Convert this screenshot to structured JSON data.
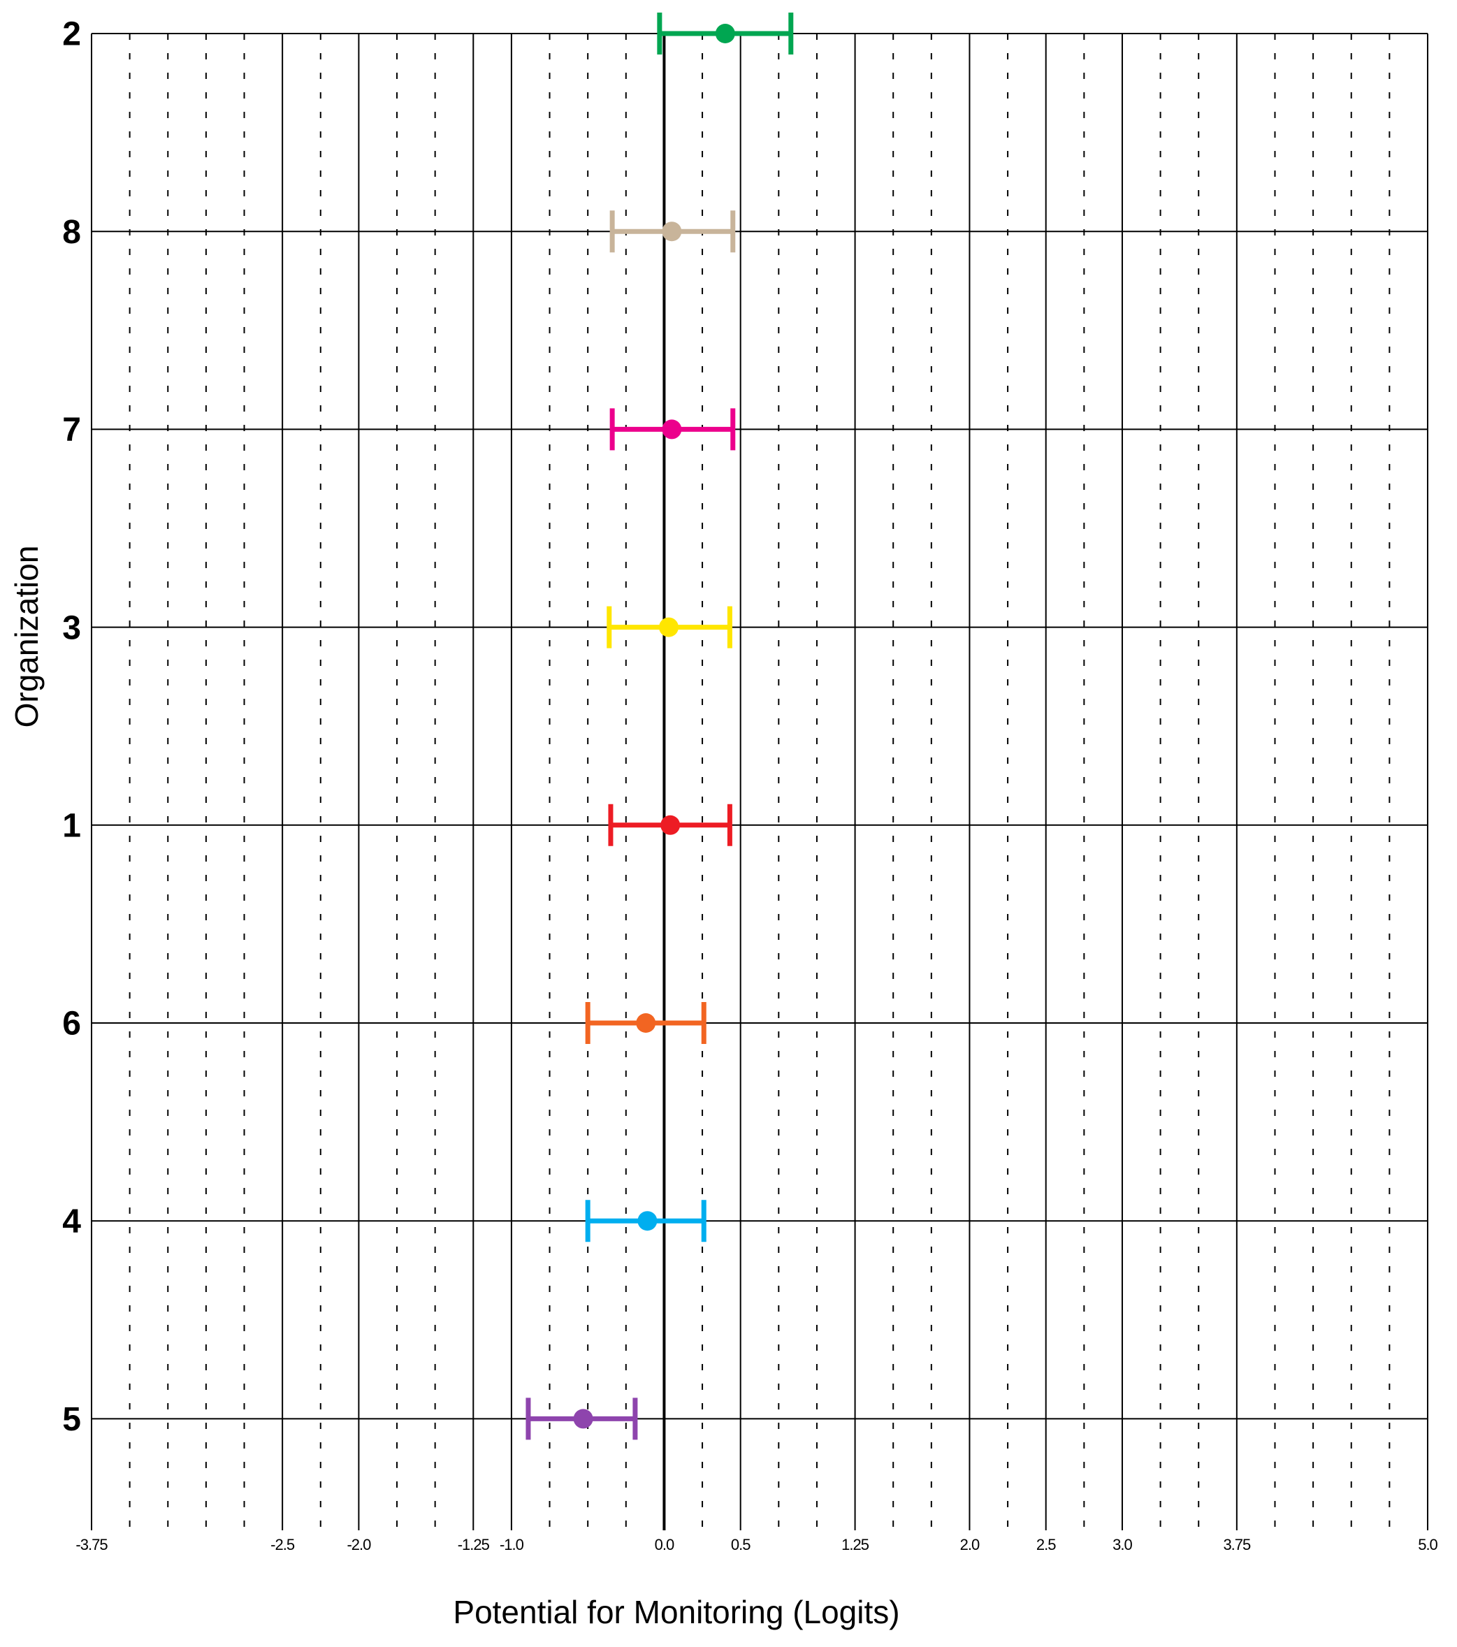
{
  "chart_data": {
    "type": "errorbar",
    "orientation": "horizontal",
    "xlabel": "Potential for Monitoring (Logits)",
    "ylabel": "Organization",
    "categories": [
      "2",
      "8",
      "7",
      "3",
      "1",
      "6",
      "4",
      "5"
    ],
    "values": [
      0.4,
      0.05,
      0.05,
      0.03,
      0.04,
      -0.12,
      -0.11,
      -0.53
    ],
    "lower": [
      -0.03,
      -0.34,
      -0.34,
      -0.36,
      -0.35,
      -0.5,
      -0.5,
      -0.89
    ],
    "upper": [
      0.83,
      0.45,
      0.45,
      0.43,
      0.43,
      0.26,
      0.26,
      -0.19
    ],
    "colors": [
      "#00a651",
      "#c8b49a",
      "#ec008c",
      "#ffe600",
      "#ed1c24",
      "#f26522",
      "#00aeef",
      "#8e44ad"
    ],
    "xlim": [
      -3.75,
      5.0
    ],
    "xticks": [
      {
        "value": -3.75,
        "label": "-3.75"
      },
      {
        "value": -2.5,
        "label": "-2.5"
      },
      {
        "value": -2.0,
        "label": "-2.0"
      },
      {
        "value": -1.25,
        "label": "-1.25"
      },
      {
        "value": -1.0,
        "label": "-1.0"
      },
      {
        "value": 0.0,
        "label": "0.0"
      },
      {
        "value": 0.5,
        "label": "0.5"
      },
      1.25,
      {
        "value": 2.0,
        "label": "2.0"
      },
      2.5,
      {
        "value": 3.0,
        "label": "3.0"
      },
      3.75,
      {
        "value": 5.0,
        "label": "5.0"
      }
    ],
    "xminorticks": [
      -3.5,
      -3.25,
      -3.0,
      -2.75,
      -2.25,
      -1.75,
      -1.5,
      -0.75,
      -0.5,
      -0.25,
      0.25,
      0.75,
      1.0,
      1.5,
      1.75,
      2.25,
      2.75,
      3.25,
      3.5,
      4.0,
      4.25,
      4.5,
      4.75
    ],
    "vline": 0.0,
    "grid": true
  }
}
